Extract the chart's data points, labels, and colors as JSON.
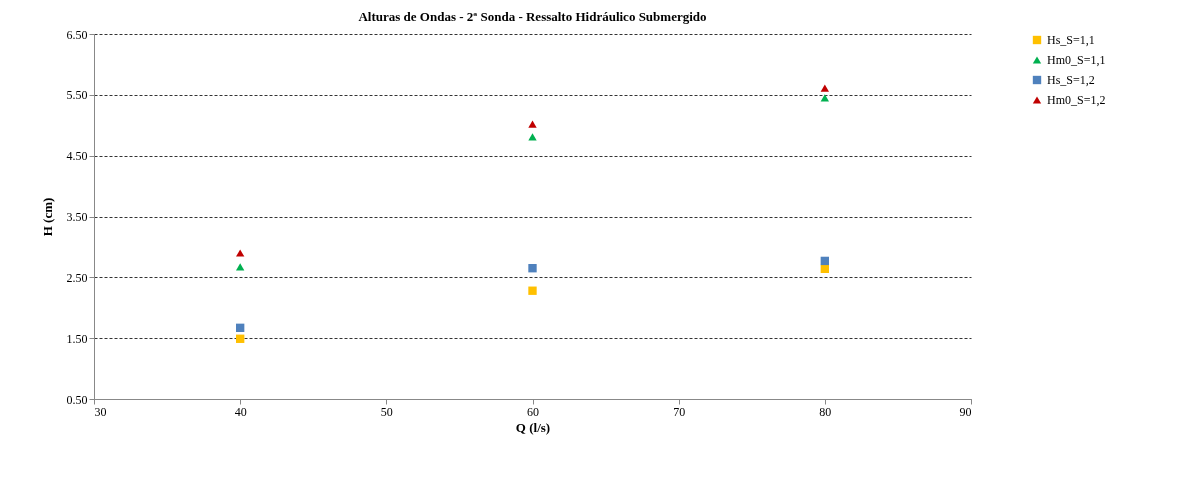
{
  "chart_data": {
    "type": "scatter",
    "title": "Alturas de Ondas - 2ª Sonda - Ressalto Hidráulico Submergido",
    "xlabel": "Q (l/s)",
    "ylabel": "H (cm)",
    "x": [
      40,
      60,
      80
    ],
    "series": [
      {
        "name": "Hs_S=1,1",
        "color": "#ffc000",
        "marker": "square",
        "values": [
          1.49,
          2.28,
          2.64
        ]
      },
      {
        "name": "Hm0_S=1,1",
        "color": "#00b050",
        "marker": "triangle",
        "values": [
          2.67,
          4.81,
          5.45
        ]
      },
      {
        "name": "Hs_S=1,2",
        "color": "#4f81bd",
        "marker": "square",
        "values": [
          1.67,
          2.65,
          2.77
        ]
      },
      {
        "name": "Hm0_S=1,2",
        "color": "#c00000",
        "marker": "triangle",
        "values": [
          2.9,
          5.02,
          5.61
        ]
      }
    ],
    "xlim": [
      30,
      90
    ],
    "xticks": [
      30,
      40,
      50,
      60,
      70,
      80,
      90
    ],
    "ylim": [
      0.5,
      6.5
    ],
    "yticks": [
      {
        "value": 0.5,
        "label": "0.50"
      },
      {
        "value": 1.5,
        "label": "1.50"
      },
      {
        "value": 2.5,
        "label": "2.50"
      },
      {
        "value": 3.5,
        "label": "3.50"
      },
      {
        "value": 4.5,
        "label": "4.50"
      },
      {
        "value": 5.5,
        "label": "5.50"
      },
      {
        "value": 6.5,
        "label": "6.50"
      }
    ],
    "grid": "y",
    "legend": "right"
  }
}
